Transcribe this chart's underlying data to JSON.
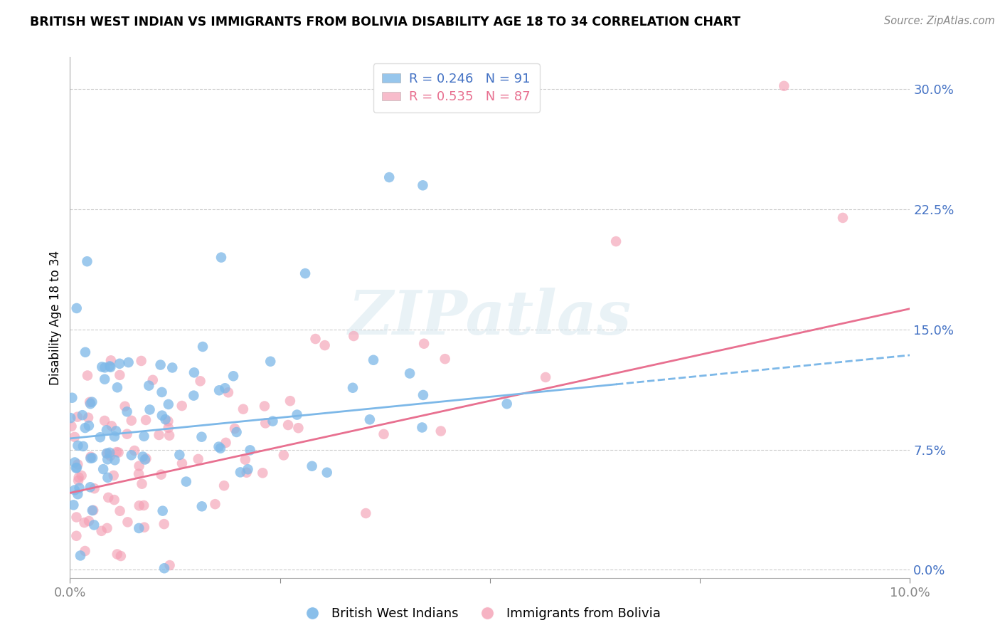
{
  "title": "BRITISH WEST INDIAN VS IMMIGRANTS FROM BOLIVIA DISABILITY AGE 18 TO 34 CORRELATION CHART",
  "source": "Source: ZipAtlas.com",
  "ylabel": "Disability Age 18 to 34",
  "xlim": [
    0.0,
    0.1
  ],
  "ylim": [
    -0.005,
    0.32
  ],
  "yticks": [
    0.0,
    0.075,
    0.15,
    0.225,
    0.3
  ],
  "ytick_labels": [
    "0.0%",
    "7.5%",
    "15.0%",
    "22.5%",
    "30.0%"
  ],
  "xticks": [
    0.0,
    0.025,
    0.05,
    0.075,
    0.1
  ],
  "xtick_labels": [
    "0.0%",
    "",
    "",
    "",
    "10.0%"
  ],
  "blue_R": 0.246,
  "blue_N": 91,
  "pink_R": 0.535,
  "pink_N": 87,
  "blue_color": "#7db8e8",
  "pink_color": "#f4a0b5",
  "blue_label": "British West Indians",
  "pink_label": "Immigrants from Bolivia",
  "watermark": "ZIPatlas",
  "title_fontsize": 12.5,
  "axis_color": "#4472c4",
  "background_color": "#ffffff",
  "grid_color": "#cccccc",
  "blue_line_color": "#7db8e8",
  "pink_line_color": "#e87090",
  "blue_seed": 42,
  "pink_seed": 77
}
